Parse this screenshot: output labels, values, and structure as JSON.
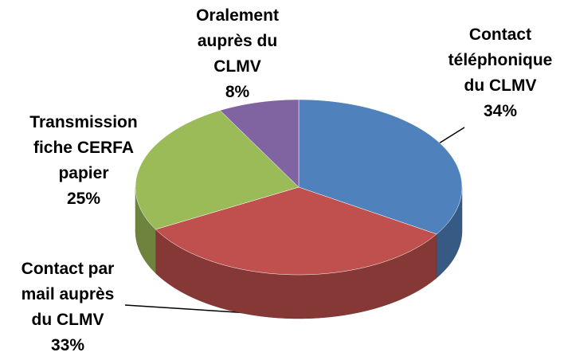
{
  "chart_data": {
    "type": "pie",
    "categories": [
      "Contact\ntéléphonique\ndu CLMV",
      "Contact par\nmail auprès\ndu CLMV",
      "Transmission\nfiche CERFA\npapier",
      "Oralement\nauprès du\nCLMV"
    ],
    "values": [
      34,
      33,
      25,
      8
    ],
    "value_labels": [
      "34%",
      "33%",
      "25%",
      "8%"
    ],
    "colors": [
      "#4f81bd",
      "#c0504d",
      "#9bbb59",
      "#8064a2"
    ]
  }
}
